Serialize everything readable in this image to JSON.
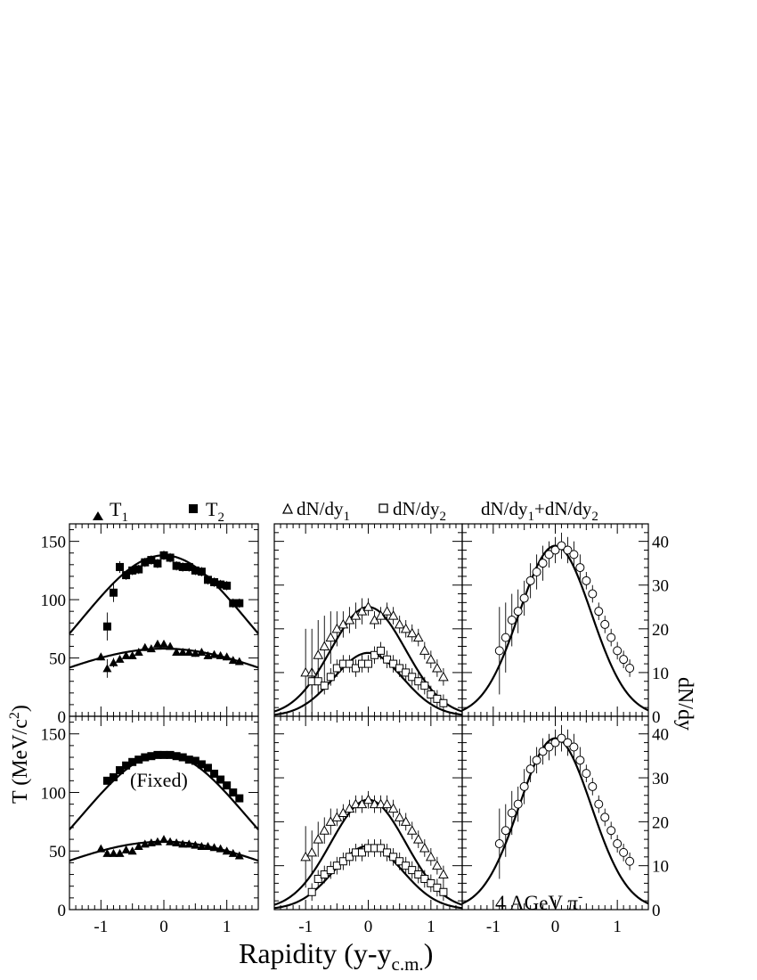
{
  "figure": {
    "xlabel": "Rapidity (y-y",
    "xlabel_sub": "c.m.",
    "xlabel_close": ")",
    "ylabel_left": "T (MeV/c",
    "ylabel_left_sup": "2",
    "ylabel_left_close": ")",
    "ylabel_right": "dN/dy",
    "annotation_fixed": "(Fixed)",
    "annotation_beam": "4 AGeV π",
    "annotation_beam_sup": "-"
  },
  "legends": {
    "left": [
      {
        "marker": "filled-triangle",
        "label": "T",
        "sub": "1"
      },
      {
        "marker": "filled-square",
        "label": "T",
        "sub": "2"
      }
    ],
    "middle": [
      {
        "marker": "open-triangle",
        "label": "dN/dy",
        "sub": "1"
      },
      {
        "marker": "open-square",
        "label": "dN/dy",
        "sub": "2"
      }
    ],
    "right": {
      "label_a": "dN/dy",
      "sub_a": "1",
      "plus": "+dN/dy",
      "sub_b": "2"
    }
  },
  "axes": {
    "x_ticks": [
      -1,
      0,
      1
    ],
    "x_tick_labels": [
      "-1",
      "0",
      "1"
    ],
    "x_range": [
      -1.5,
      1.5
    ],
    "left_y_ticks": [
      0,
      50,
      100,
      150
    ],
    "left_y_tick_labels": [
      "0",
      "50",
      "100",
      "150"
    ],
    "left_y_range": [
      0,
      165
    ],
    "right_y_ticks": [
      0,
      10,
      20,
      30,
      40
    ],
    "right_y_tick_labels": [
      "0",
      "10",
      "20",
      "30",
      "40"
    ],
    "right_y_range": [
      0,
      44
    ]
  },
  "colors": {
    "ink": "#000000",
    "background": "#ffffff"
  },
  "chart_data": [
    {
      "panel": "top-left",
      "type": "scatter",
      "series": [
        {
          "name": "T1",
          "marker": "filled-triangle",
          "x": [
            -1.0,
            -0.9,
            -0.8,
            -0.7,
            -0.6,
            -0.5,
            -0.4,
            -0.3,
            -0.2,
            -0.1,
            0.0,
            0.1,
            0.2,
            0.3,
            0.4,
            0.5,
            0.6,
            0.7,
            0.8,
            0.9,
            1.0,
            1.1,
            1.2
          ],
          "y": [
            51,
            41,
            46,
            49,
            52,
            52,
            55,
            59,
            58,
            62,
            62,
            60,
            55,
            55,
            55,
            54,
            55,
            52,
            53,
            52,
            51,
            48,
            47
          ],
          "err": [
            3,
            8,
            4,
            3,
            3,
            3,
            3,
            3,
            3,
            3,
            3,
            3,
            3,
            3,
            3,
            3,
            3,
            3,
            3,
            3,
            3,
            3,
            3
          ]
        },
        {
          "name": "T2",
          "marker": "filled-square",
          "x": [
            -0.9,
            -0.8,
            -0.7,
            -0.6,
            -0.5,
            -0.4,
            -0.3,
            -0.2,
            -0.1,
            0.0,
            0.1,
            0.2,
            0.3,
            0.4,
            0.5,
            0.6,
            0.7,
            0.8,
            0.9,
            1.0,
            1.1,
            1.2
          ],
          "y": [
            77,
            106,
            128,
            121,
            125,
            126,
            132,
            134,
            131,
            138,
            136,
            129,
            128,
            128,
            125,
            124,
            117,
            115,
            113,
            112,
            97,
            97
          ],
          "err": [
            12,
            8,
            5,
            4,
            4,
            4,
            4,
            4,
            4,
            4,
            4,
            4,
            4,
            4,
            4,
            4,
            4,
            4,
            4,
            4,
            4,
            4
          ]
        }
      ],
      "curves": [
        {
          "name": "T1 fit",
          "peak": 58,
          "sigma": 1.85
        },
        {
          "name": "T2 fit",
          "peak": 138,
          "sigma": 1.3
        }
      ]
    },
    {
      "panel": "bottom-left",
      "type": "scatter",
      "series": [
        {
          "name": "T1",
          "marker": "filled-triangle",
          "x": [
            -1.0,
            -0.9,
            -0.8,
            -0.7,
            -0.6,
            -0.5,
            -0.4,
            -0.3,
            -0.2,
            -0.1,
            0.0,
            0.1,
            0.2,
            0.3,
            0.4,
            0.5,
            0.6,
            0.7,
            0.8,
            0.9,
            1.0,
            1.1,
            1.2
          ],
          "y": [
            52,
            48,
            48,
            48,
            51,
            50,
            54,
            56,
            57,
            58,
            60,
            58,
            57,
            56,
            56,
            55,
            54,
            54,
            53,
            52,
            50,
            48,
            46
          ],
          "err": [
            2,
            2,
            2,
            2,
            2,
            2,
            2,
            2,
            2,
            2,
            2,
            2,
            2,
            2,
            2,
            2,
            2,
            2,
            2,
            2,
            2,
            2,
            2
          ]
        },
        {
          "name": "T2",
          "marker": "filled-square",
          "x": [
            -0.9,
            -0.8,
            -0.7,
            -0.6,
            -0.5,
            -0.4,
            -0.3,
            -0.2,
            -0.1,
            0.0,
            0.1,
            0.2,
            0.3,
            0.4,
            0.5,
            0.6,
            0.7,
            0.8,
            0.9,
            1.0,
            1.1,
            1.2
          ],
          "y": [
            110,
            113,
            119,
            123,
            126,
            128,
            130,
            131,
            132,
            132,
            132,
            131,
            130,
            128,
            127,
            124,
            121,
            116,
            111,
            106,
            100,
            95
          ],
          "err": [
            3,
            3,
            3,
            3,
            3,
            3,
            3,
            3,
            3,
            3,
            3,
            3,
            3,
            3,
            3,
            3,
            3,
            3,
            3,
            3,
            3,
            3
          ]
        }
      ],
      "curves": [
        {
          "name": "T1 fit",
          "peak": 58,
          "sigma": 1.85
        },
        {
          "name": "T2 fit",
          "peak": 133,
          "sigma": 1.3
        }
      ]
    },
    {
      "panel": "top-middle",
      "type": "scatter",
      "series": [
        {
          "name": "dN/dy1",
          "marker": "open-triangle",
          "x": [
            -1.0,
            -0.9,
            -0.8,
            -0.7,
            -0.6,
            -0.5,
            -0.4,
            -0.3,
            -0.2,
            -0.1,
            0.0,
            0.1,
            0.2,
            0.3,
            0.4,
            0.5,
            0.6,
            0.7,
            0.8,
            0.9,
            1.0,
            1.1,
            1.2
          ],
          "y": [
            10,
            10,
            14,
            16,
            18,
            20,
            21,
            22,
            23,
            24,
            25,
            22,
            23,
            24,
            23,
            21,
            20,
            19,
            18,
            15,
            13,
            11,
            9
          ],
          "err": [
            10,
            10,
            8,
            7,
            6,
            4,
            3,
            3,
            3,
            3,
            2,
            2,
            2,
            2,
            2,
            2,
            2,
            2,
            2,
            2,
            2,
            2,
            2
          ]
        },
        {
          "name": "dN/dy2",
          "marker": "open-square",
          "x": [
            -0.9,
            -0.8,
            -0.7,
            -0.6,
            -0.5,
            -0.4,
            -0.3,
            -0.2,
            -0.1,
            0.0,
            0.1,
            0.2,
            0.3,
            0.4,
            0.5,
            0.6,
            0.7,
            0.8,
            0.9,
            1.0,
            1.1,
            1.2
          ],
          "y": [
            8,
            8,
            7,
            9,
            11,
            12,
            12,
            11,
            12,
            12,
            14,
            15,
            13,
            12,
            11,
            10,
            9,
            8,
            7,
            5,
            4,
            3
          ],
          "err": [
            3,
            3,
            2,
            2,
            2,
            2,
            2,
            2,
            2,
            2,
            2,
            2,
            2,
            2,
            2,
            2,
            2,
            2,
            2,
            2,
            2,
            2
          ]
        }
      ],
      "curves": [
        {
          "name": "dN/dy1 fit",
          "peak": 25,
          "sigma": 0.6,
          "base": 0
        },
        {
          "name": "dN/dy2 fit",
          "peak": 14.5,
          "sigma": 0.55,
          "base": 0
        }
      ]
    },
    {
      "panel": "bottom-middle",
      "type": "scatter",
      "series": [
        {
          "name": "dN/dy1",
          "marker": "open-triangle",
          "x": [
            -1.0,
            -0.9,
            -0.8,
            -0.7,
            -0.6,
            -0.5,
            -0.4,
            -0.3,
            -0.2,
            -0.1,
            0.0,
            0.1,
            0.2,
            0.3,
            0.4,
            0.5,
            0.6,
            0.7,
            0.8,
            0.9,
            1.0,
            1.1,
            1.2
          ],
          "y": [
            12,
            13,
            16,
            18,
            20,
            21,
            22,
            23,
            24,
            24,
            25,
            24,
            24,
            24,
            23,
            21,
            20,
            18,
            16,
            14,
            12,
            10,
            8
          ],
          "err": [
            7,
            5,
            4,
            3,
            3,
            2,
            2,
            2,
            2,
            2,
            2,
            2,
            2,
            2,
            2,
            2,
            2,
            2,
            2,
            2,
            2,
            2,
            2
          ]
        },
        {
          "name": "dN/dy2",
          "marker": "open-square",
          "x": [
            -0.9,
            -0.8,
            -0.7,
            -0.6,
            -0.5,
            -0.4,
            -0.3,
            -0.2,
            -0.1,
            0.0,
            0.1,
            0.2,
            0.3,
            0.4,
            0.5,
            0.6,
            0.7,
            0.8,
            0.9,
            1.0,
            1.1,
            1.2
          ],
          "y": [
            4,
            7,
            8,
            9,
            10,
            11,
            12,
            13,
            13,
            14,
            14,
            14,
            13,
            12,
            11,
            10,
            9,
            8,
            7,
            6,
            5,
            4
          ],
          "err": [
            2,
            2,
            2,
            2,
            2,
            2,
            2,
            2,
            2,
            2,
            2,
            2,
            2,
            2,
            2,
            2,
            2,
            2,
            2,
            2,
            2,
            2
          ]
        }
      ],
      "curves": [
        {
          "name": "dN/dy1 fit",
          "peak": 25,
          "sigma": 0.6,
          "base": 0
        },
        {
          "name": "dN/dy2 fit",
          "peak": 14.5,
          "sigma": 0.55,
          "base": 0
        }
      ]
    },
    {
      "panel": "top-right",
      "type": "scatter",
      "series": [
        {
          "name": "dN/dy1+dN/dy2",
          "marker": "open-circle",
          "x": [
            -0.9,
            -0.8,
            -0.7,
            -0.6,
            -0.5,
            -0.4,
            -0.3,
            -0.2,
            -0.1,
            0.0,
            0.1,
            0.2,
            0.3,
            0.4,
            0.5,
            0.6,
            0.7,
            0.8,
            0.9,
            1.0,
            1.1,
            1.2
          ],
          "y": [
            15,
            18,
            22,
            24,
            27,
            31,
            33,
            35,
            37,
            38,
            39,
            38,
            37,
            34,
            31,
            28,
            24,
            21,
            18,
            15,
            13,
            11
          ],
          "err": [
            10,
            8,
            6,
            5,
            4,
            4,
            4,
            4,
            3,
            3,
            3,
            3,
            3,
            3,
            2,
            2,
            2,
            2,
            2,
            2,
            2,
            2
          ]
        }
      ],
      "curves": [
        {
          "name": "sum fit",
          "peak": 39,
          "sigma": 0.58,
          "base": 0
        }
      ]
    },
    {
      "panel": "bottom-right",
      "type": "scatter",
      "series": [
        {
          "name": "dN/dy1+dN/dy2",
          "marker": "open-circle",
          "x": [
            -0.9,
            -0.8,
            -0.7,
            -0.6,
            -0.5,
            -0.4,
            -0.3,
            -0.2,
            -0.1,
            0.0,
            0.1,
            0.2,
            0.3,
            0.4,
            0.5,
            0.6,
            0.7,
            0.8,
            0.9,
            1.0,
            1.1,
            1.2
          ],
          "y": [
            15,
            18,
            22,
            24,
            28,
            32,
            34,
            36,
            37,
            38,
            39,
            38,
            37,
            34,
            31,
            28,
            24,
            21,
            18,
            15,
            13,
            11
          ],
          "err": [
            8,
            6,
            5,
            4,
            4,
            3,
            3,
            3,
            3,
            3,
            3,
            3,
            3,
            3,
            2,
            2,
            2,
            2,
            2,
            2,
            2,
            2
          ]
        }
      ],
      "curves": [
        {
          "name": "sum fit",
          "peak": 39,
          "sigma": 0.58,
          "base": 0
        }
      ]
    }
  ]
}
